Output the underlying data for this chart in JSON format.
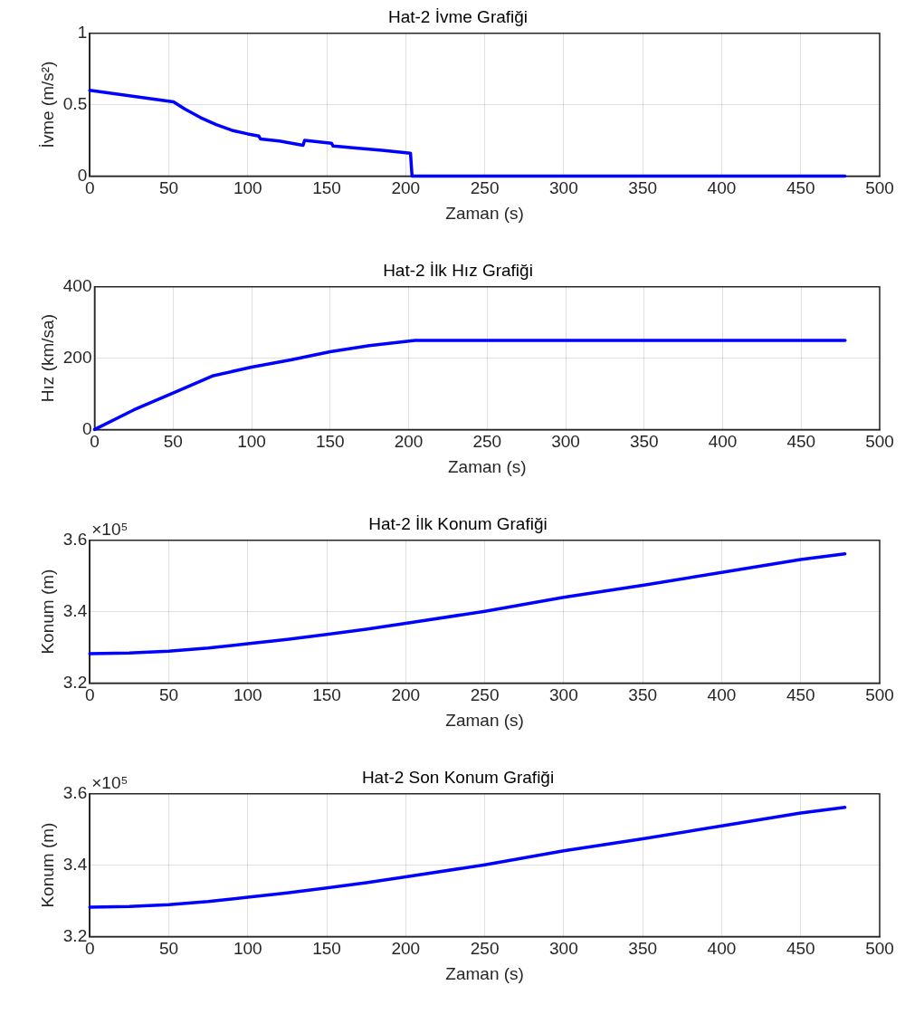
{
  "chart_data": [
    {
      "type": "line",
      "title": "Hat-2 İvme Grafiği",
      "xlabel": "Zaman (s)",
      "ylabel": "İvme (m/s²)",
      "x": [
        0,
        53,
        60,
        70,
        80,
        90,
        100,
        107,
        108,
        120,
        135,
        136,
        153,
        154,
        170,
        185,
        203,
        204,
        478
      ],
      "series": [
        {
          "color": "#0000ff",
          "values": [
            0.6,
            0.52,
            0.47,
            0.41,
            0.36,
            0.32,
            0.295,
            0.28,
            0.26,
            0.245,
            0.215,
            0.25,
            0.23,
            0.21,
            0.195,
            0.18,
            0.16,
            0,
            0
          ]
        }
      ],
      "xlim": [
        0,
        500
      ],
      "xticks": [
        0,
        50,
        100,
        150,
        200,
        250,
        300,
        350,
        400,
        450,
        500
      ],
      "ylim": [
        0,
        1
      ],
      "yticks": [
        0,
        0.5,
        1
      ],
      "grid": true,
      "legend": false,
      "line_style": "solid",
      "marker": "none"
    },
    {
      "type": "line",
      "title": "Hat-2 İlk Hız Grafiği",
      "xlabel": "Zaman (s)",
      "ylabel": "Hız (km/sa)",
      "x": [
        0,
        25,
        53,
        75,
        100,
        125,
        150,
        175,
        204,
        478
      ],
      "series": [
        {
          "color": "#0000ff",
          "values": [
            0,
            55,
            108,
            150,
            175,
            195,
            218,
            235,
            250,
            250
          ]
        }
      ],
      "xlim": [
        0,
        500
      ],
      "xticks": [
        0,
        50,
        100,
        150,
        200,
        250,
        300,
        350,
        400,
        450,
        500
      ],
      "ylim": [
        0,
        400
      ],
      "yticks": [
        0,
        200,
        400
      ],
      "grid": true,
      "legend": false,
      "line_style": "solid",
      "marker": "none"
    },
    {
      "type": "line",
      "title": "Hat-2 İlk Konum Grafiği",
      "xlabel": "Zaman (s)",
      "ylabel": "Konum (m)",
      "annotations": [
        "×10⁵"
      ],
      "x": [
        0,
        25,
        50,
        75,
        100,
        125,
        150,
        175,
        200,
        250,
        300,
        350,
        400,
        450,
        478
      ],
      "series": [
        {
          "color": "#0000ff",
          "values": [
            3.282,
            3.284,
            3.289,
            3.298,
            3.31,
            3.322,
            3.336,
            3.351,
            3.367,
            3.401,
            3.44,
            3.474,
            3.51,
            3.546,
            3.562
          ]
        }
      ],
      "xlim": [
        0,
        500
      ],
      "xticks": [
        0,
        50,
        100,
        150,
        200,
        250,
        300,
        350,
        400,
        450,
        500
      ],
      "ylim": [
        3.2,
        3.6
      ],
      "yticks": [
        3.2,
        3.4,
        3.6
      ],
      "grid": true,
      "legend": false,
      "line_style": "solid",
      "marker": "none"
    },
    {
      "type": "line",
      "title": "Hat-2 Son Konum Grafiği",
      "xlabel": "Zaman (s)",
      "ylabel": "Konum (m)",
      "annotations": [
        "×10⁵"
      ],
      "x": [
        0,
        25,
        50,
        75,
        100,
        125,
        150,
        175,
        200,
        250,
        300,
        350,
        400,
        450,
        478
      ],
      "series": [
        {
          "color": "#0000ff",
          "values": [
            3.282,
            3.284,
            3.289,
            3.298,
            3.31,
            3.322,
            3.336,
            3.351,
            3.367,
            3.401,
            3.44,
            3.474,
            3.51,
            3.546,
            3.562
          ]
        }
      ],
      "xlim": [
        0,
        500
      ],
      "xticks": [
        0,
        50,
        100,
        150,
        200,
        250,
        300,
        350,
        400,
        450,
        500
      ],
      "ylim": [
        3.2,
        3.6
      ],
      "yticks": [
        3.2,
        3.4,
        3.6
      ],
      "grid": true,
      "legend": false,
      "line_style": "solid",
      "marker": "none"
    }
  ]
}
